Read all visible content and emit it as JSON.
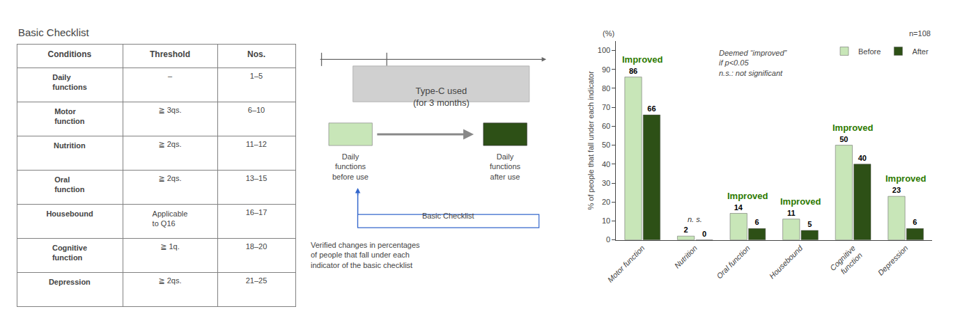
{
  "chart_data": [
    {
      "type": "table",
      "title": "Basic Checklist",
      "columns": [
        "Conditions",
        "Threshold",
        "Nos."
      ],
      "rows": [
        [
          "Daily\nfunctions",
          "–",
          "1–5"
        ],
        [
          "Motor\nfunction",
          "≧ 3qs.",
          "6–10"
        ],
        [
          "Nutrition",
          "≧ 2qs.",
          "11–12"
        ],
        [
          "Oral\nfunction",
          "≧ 2qs.",
          "13–15"
        ],
        [
          "Housebound",
          "Applicable\nto Q16",
          "16–17"
        ],
        [
          "Cognitive\nfunction",
          "≧ 1q.",
          "18–20"
        ],
        [
          "Depression",
          "≧ 2qs.",
          "21–25"
        ]
      ]
    },
    {
      "type": "diagram",
      "annotations": [
        "Type-C used\n(for 3 months)",
        "Daily\nfunctions\nbefore use",
        "Daily\nfunctions\nafter use",
        "Basic Checklist",
        "Verified changes in percentages\nof people that fall under each\nindicator of the basic checklist"
      ]
    },
    {
      "type": "bar",
      "categories": [
        "Motor function",
        "Nutrition",
        "Oral function",
        "Housebound",
        "Cognitive\nfunction",
        "Depression"
      ],
      "series": [
        {
          "name": "Before",
          "color": "#c8e6b8",
          "values": [
            86,
            2,
            14,
            11,
            50,
            23
          ]
        },
        {
          "name": "After",
          "color": "#2d5016",
          "values": [
            66,
            0,
            6,
            5,
            40,
            6
          ]
        }
      ],
      "ylabel": "% of people that fall under each indicator",
      "ylim": [
        0,
        105
      ],
      "yticks": [
        0,
        10,
        20,
        30,
        40,
        50,
        60,
        70,
        80,
        90,
        100
      ],
      "grid": false,
      "legend": "upper right",
      "data_labels": true,
      "annotations": [
        {
          "text": "(%)"
        },
        {
          "text": "n=108"
        },
        {
          "text": "Deemed “improved”\nif p<0.05\nn.s.: not significant"
        },
        {
          "text": "Improved",
          "category": "Motor function",
          "color": "#2d7a00"
        },
        {
          "text": "n. s.",
          "category": "Nutrition"
        },
        {
          "text": "Improved",
          "category": "Oral function",
          "color": "#2d7a00"
        },
        {
          "text": "Improved",
          "category": "Housebound",
          "color": "#2d7a00"
        },
        {
          "text": "Improved",
          "category": "Cognitive\nfunction",
          "color": "#2d7a00"
        },
        {
          "text": "Improved",
          "category": "Depression",
          "color": "#2d7a00"
        }
      ]
    }
  ]
}
